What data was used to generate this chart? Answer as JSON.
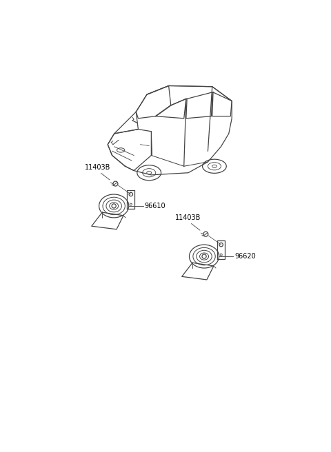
{
  "background_color": "#ffffff",
  "line_color": "#444444",
  "text_color": "#000000",
  "part_labels": {
    "bolt_left": "11403B",
    "horn_left": "96610",
    "bolt_right": "11403B",
    "horn_right": "96620"
  },
  "fig_width": 4.8,
  "fig_height": 6.56,
  "dpi": 100
}
